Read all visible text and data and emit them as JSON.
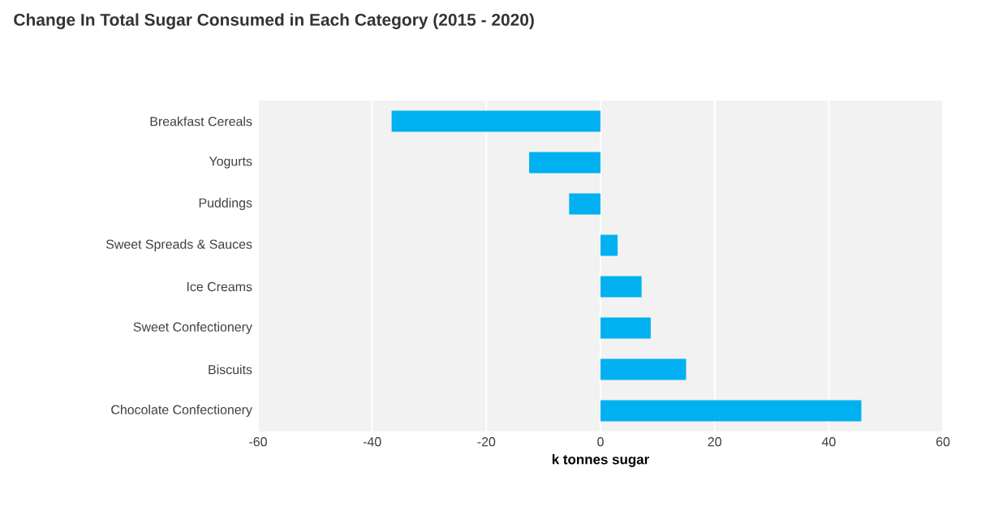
{
  "chart_data": {
    "type": "bar",
    "orientation": "horizontal",
    "title": "Change In Total Sugar Consumed in Each Category (2015 - 2020)",
    "xlabel": "k tonnes sugar",
    "categories": [
      "Breakfast Cereals",
      "Yogurts",
      "Puddings",
      "Sweet Spreads & Sauces",
      "Ice Creams",
      "Sweet Confectionery",
      "Biscuits",
      "Chocolate Confectionery"
    ],
    "values": [
      -36.6,
      -12.5,
      -5.5,
      3.0,
      7.2,
      8.8,
      15.0,
      45.7
    ],
    "color": "#00b0f0",
    "xlim": [
      -60,
      60
    ],
    "xticks": [
      -60,
      -40,
      -20,
      0,
      20,
      40,
      60
    ],
    "grid": "x"
  }
}
